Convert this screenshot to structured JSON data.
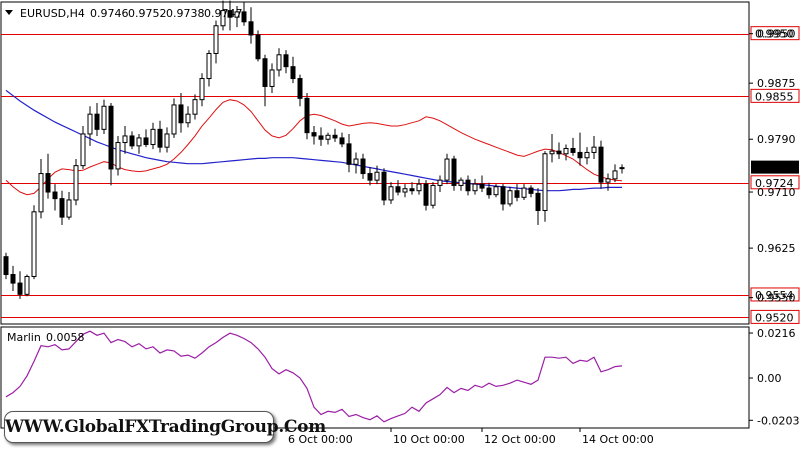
{
  "chart_data": [
    {
      "type": "candlestick",
      "title": "EURUSD,H4  0.9746 0.9752 0.9738 0.9747",
      "symbol_timeframe": "EURUSD,H4",
      "ohlc_header": [
        "0.9746",
        "0.9752",
        "0.9738",
        "0.9747"
      ],
      "ylim": [
        0.951,
        0.9998
      ],
      "y_ticks": [
        "0.9950",
        "0.9875",
        "0.9790",
        "0.9710",
        "0.9625",
        "0.9550"
      ],
      "x_ticks": [
        "6 Oct 00:00",
        "10 Oct 00:00",
        "12 Oct 00:00",
        "14 Oct 00:00"
      ],
      "current_price": "0.9747",
      "levels": [
        {
          "label": "0.9950",
          "value": 0.995,
          "color": "#e00000"
        },
        {
          "label": "0.9855",
          "value": 0.9855,
          "color": "#e00000"
        },
        {
          "label": "0.9724",
          "value": 0.9724,
          "color": "#e00000"
        },
        {
          "label": "0.9554",
          "value": 0.9554,
          "color": "#e00000"
        },
        {
          "label": "0.9520",
          "value": 0.952,
          "color": "#e00000"
        }
      ],
      "candles": [
        [
          0.9612,
          0.9618,
          0.9578,
          0.9585
        ],
        [
          0.9585,
          0.9598,
          0.956,
          0.9572
        ],
        [
          0.9572,
          0.959,
          0.9548,
          0.9555
        ],
        [
          0.9555,
          0.9585,
          0.9552,
          0.9582
        ],
        [
          0.9582,
          0.969,
          0.9578,
          0.968
        ],
        [
          0.968,
          0.976,
          0.967,
          0.9738
        ],
        [
          0.9738,
          0.9768,
          0.97,
          0.971
        ],
        [
          0.971,
          0.9722,
          0.9682,
          0.97
        ],
        [
          0.97,
          0.9712,
          0.966,
          0.9672
        ],
        [
          0.9672,
          0.971,
          0.9668,
          0.9698
        ],
        [
          0.9698,
          0.976,
          0.969,
          0.975
        ],
        [
          0.975,
          0.981,
          0.9745,
          0.9798
        ],
        [
          0.9798,
          0.984,
          0.978,
          0.9828
        ],
        [
          0.9828,
          0.9845,
          0.9795,
          0.9805
        ],
        [
          0.9805,
          0.985,
          0.9798,
          0.984
        ],
        [
          0.984,
          0.9845,
          0.972,
          0.9745
        ],
        [
          0.9745,
          0.9795,
          0.9735,
          0.9785
        ],
        [
          0.9785,
          0.981,
          0.9768,
          0.9795
        ],
        [
          0.9795,
          0.9802,
          0.9775,
          0.978
        ],
        [
          0.978,
          0.9798,
          0.9768,
          0.9792
        ],
        [
          0.9792,
          0.9805,
          0.9778,
          0.9782
        ],
        [
          0.9782,
          0.9815,
          0.9775,
          0.9805
        ],
        [
          0.9805,
          0.9818,
          0.977,
          0.9778
        ],
        [
          0.9778,
          0.9808,
          0.977,
          0.9798
        ],
        [
          0.9798,
          0.9852,
          0.9792,
          0.9842
        ],
        [
          0.9842,
          0.986,
          0.98,
          0.9815
        ],
        [
          0.9815,
          0.984,
          0.9808,
          0.9828
        ],
        [
          0.9828,
          0.9858,
          0.982,
          0.985
        ],
        [
          0.985,
          0.989,
          0.984,
          0.9882
        ],
        [
          0.9882,
          0.9925,
          0.987,
          0.992
        ],
        [
          0.992,
          0.997,
          0.9905,
          0.9962
        ],
        [
          0.9962,
          1.0,
          0.9955,
          0.9985
        ],
        [
          0.9985,
          1.0,
          0.9955,
          0.9975
        ],
        [
          0.9975,
          0.9992,
          0.996,
          0.9983
        ],
        [
          0.9983,
          0.9998,
          0.9962,
          0.9968
        ],
        [
          0.9968,
          0.999,
          0.9935,
          0.9948
        ],
        [
          0.9948,
          0.9955,
          0.9908,
          0.9912
        ],
        [
          0.9912,
          0.9918,
          0.984,
          0.987
        ],
        [
          0.987,
          0.9905,
          0.986,
          0.9895
        ],
        [
          0.9895,
          0.9928,
          0.9885,
          0.9918
        ],
        [
          0.9918,
          0.9925,
          0.989,
          0.99
        ],
        [
          0.99,
          0.9915,
          0.9875,
          0.9882
        ],
        [
          0.9882,
          0.9888,
          0.984,
          0.9852
        ],
        [
          0.9852,
          0.986,
          0.979,
          0.98
        ],
        [
          0.98,
          0.981,
          0.9782,
          0.9795
        ],
        [
          0.9795,
          0.9808,
          0.978,
          0.979
        ],
        [
          0.979,
          0.98,
          0.9782,
          0.9796
        ],
        [
          0.9796,
          0.9806,
          0.9786,
          0.9792
        ],
        [
          0.9792,
          0.98,
          0.9778,
          0.9783
        ],
        [
          0.9783,
          0.9798,
          0.974,
          0.9752
        ],
        [
          0.9752,
          0.977,
          0.9738,
          0.976
        ],
        [
          0.976,
          0.9768,
          0.973,
          0.9738
        ],
        [
          0.9738,
          0.9748,
          0.972,
          0.9728
        ],
        [
          0.9728,
          0.975,
          0.9722,
          0.974
        ],
        [
          0.974,
          0.9746,
          0.969,
          0.9698
        ],
        [
          0.9698,
          0.9725,
          0.9692,
          0.9718
        ],
        [
          0.9718,
          0.9728,
          0.9705,
          0.971
        ],
        [
          0.971,
          0.9722,
          0.9702,
          0.9715
        ],
        [
          0.9715,
          0.9725,
          0.9706,
          0.9712
        ],
        [
          0.9712,
          0.973,
          0.9706,
          0.9722
        ],
        [
          0.9722,
          0.9728,
          0.9682,
          0.969
        ],
        [
          0.969,
          0.9725,
          0.9685,
          0.972
        ],
        [
          0.972,
          0.9735,
          0.971,
          0.9728
        ],
        [
          0.9728,
          0.9768,
          0.9722,
          0.976
        ],
        [
          0.976,
          0.9765,
          0.9712,
          0.972
        ],
        [
          0.972,
          0.9732,
          0.9712,
          0.9728
        ],
        [
          0.9728,
          0.9735,
          0.9705,
          0.9712
        ],
        [
          0.9712,
          0.973,
          0.9706,
          0.9722
        ],
        [
          0.9722,
          0.9735,
          0.971,
          0.9716
        ],
        [
          0.9716,
          0.9724,
          0.97,
          0.9706
        ],
        [
          0.9706,
          0.9722,
          0.9702,
          0.9718
        ],
        [
          0.9718,
          0.9722,
          0.9682,
          0.9692
        ],
        [
          0.9692,
          0.9718,
          0.9688,
          0.9712
        ],
        [
          0.9712,
          0.9722,
          0.9696,
          0.9702
        ],
        [
          0.9702,
          0.9722,
          0.9698,
          0.9716
        ],
        [
          0.9716,
          0.972,
          0.9702,
          0.9708
        ],
        [
          0.9708,
          0.9716,
          0.966,
          0.9682
        ],
        [
          0.9682,
          0.9772,
          0.9665,
          0.9768
        ],
        [
          0.9768,
          0.9798,
          0.9755,
          0.9772
        ],
        [
          0.9772,
          0.9785,
          0.976,
          0.9768
        ],
        [
          0.9768,
          0.9782,
          0.9758,
          0.9776
        ],
        [
          0.9776,
          0.9792,
          0.9765,
          0.977
        ],
        [
          0.977,
          0.98,
          0.975,
          0.9762
        ],
        [
          0.9762,
          0.9778,
          0.9752,
          0.977
        ],
        [
          0.977,
          0.9795,
          0.976,
          0.9778
        ],
        [
          0.9778,
          0.9788,
          0.9715,
          0.9725
        ],
        [
          0.9725,
          0.9738,
          0.9712,
          0.973
        ],
        [
          0.973,
          0.9752,
          0.9725,
          0.9742
        ],
        [
          0.9746,
          0.9752,
          0.9738,
          0.9747
        ]
      ],
      "ma_blue": [
        0.9864,
        0.9856,
        0.9848,
        0.9841,
        0.9834,
        0.9828,
        0.9822,
        0.9816,
        0.9811,
        0.9806,
        0.9801,
        0.9796,
        0.9791,
        0.9786,
        0.9782,
        0.9778,
        0.9774,
        0.9771,
        0.9768,
        0.9765,
        0.9762,
        0.976,
        0.9758,
        0.9756,
        0.9755,
        0.9754,
        0.9753,
        0.9753,
        0.9753,
        0.9754,
        0.9755,
        0.9756,
        0.9757,
        0.9758,
        0.9759,
        0.976,
        0.9761,
        0.9761,
        0.9762,
        0.9762,
        0.9762,
        0.9762,
        0.9761,
        0.976,
        0.9759,
        0.9758,
        0.9757,
        0.9756,
        0.9755,
        0.9753,
        0.9751,
        0.9749,
        0.9747,
        0.9745,
        0.9743,
        0.9741,
        0.9739,
        0.9737,
        0.9735,
        0.9733,
        0.9731,
        0.9729,
        0.9727,
        0.9726,
        0.9725,
        0.9724,
        0.9723,
        0.9722,
        0.9721,
        0.972,
        0.9719,
        0.9718,
        0.9717,
        0.9716,
        0.9715,
        0.9714,
        0.9713,
        0.9712,
        0.9712,
        0.9712,
        0.9713,
        0.9714,
        0.9714,
        0.9715,
        0.9716,
        0.9716,
        0.9717,
        0.9717,
        0.9717
      ],
      "ma_red": [
        0.9728,
        0.9718,
        0.971,
        0.9706,
        0.9708,
        0.9718,
        0.973,
        0.974,
        0.9745,
        0.9744,
        0.9742,
        0.9743,
        0.9748,
        0.9752,
        0.9756,
        0.9754,
        0.9748,
        0.9744,
        0.9742,
        0.9741,
        0.9742,
        0.9745,
        0.9748,
        0.9752,
        0.976,
        0.977,
        0.9782,
        0.9795,
        0.981,
        0.9822,
        0.9835,
        0.9846,
        0.985,
        0.9848,
        0.9842,
        0.9832,
        0.9818,
        0.9804,
        0.9795,
        0.9792,
        0.9796,
        0.9806,
        0.9818,
        0.9826,
        0.9828,
        0.9826,
        0.9822,
        0.9818,
        0.9813,
        0.981,
        0.9812,
        0.9814,
        0.9815,
        0.9814,
        0.9812,
        0.981,
        0.981,
        0.9812,
        0.9815,
        0.9818,
        0.9824,
        0.9822,
        0.9818,
        0.9812,
        0.9806,
        0.98,
        0.9795,
        0.979,
        0.9786,
        0.9782,
        0.9778,
        0.9774,
        0.977,
        0.9766,
        0.9764,
        0.9768,
        0.9772,
        0.9775,
        0.9774,
        0.977,
        0.9765,
        0.976,
        0.9752,
        0.9744,
        0.9737,
        0.9733,
        0.973,
        0.9728,
        0.9727
      ]
    },
    {
      "type": "line",
      "title": "Marlin 0.0058",
      "indicator_name": "Marlin",
      "indicator_value": "0.0058",
      "ylim": [
        -0.024,
        0.0245
      ],
      "y_ticks": [
        "0.0216",
        "0.00",
        "-0.0203"
      ],
      "series": [
        {
          "name": "Marlin",
          "color": "#9b1fa6",
          "values": [
            -0.009,
            -0.007,
            -0.004,
            0.001,
            0.008,
            0.0155,
            0.015,
            0.016,
            0.0135,
            0.014,
            0.0175,
            0.021,
            0.0225,
            0.0205,
            0.0215,
            0.017,
            0.0185,
            0.0175,
            0.015,
            0.0165,
            0.014,
            0.015,
            0.012,
            0.0135,
            0.013,
            0.0105,
            0.011,
            0.0095,
            0.012,
            0.015,
            0.017,
            0.0195,
            0.0215,
            0.0205,
            0.019,
            0.017,
            0.014,
            0.01,
            0.0045,
            0.002,
            0.004,
            0.0025,
            0.0,
            -0.005,
            -0.014,
            -0.0175,
            -0.016,
            -0.0165,
            -0.015,
            -0.0185,
            -0.0175,
            -0.019,
            -0.02,
            -0.0182,
            -0.021,
            -0.0195,
            -0.0182,
            -0.017,
            -0.014,
            -0.016,
            -0.012,
            -0.01,
            -0.008,
            -0.0045,
            -0.007,
            -0.005,
            -0.006,
            -0.0035,
            -0.0045,
            -0.0025,
            -0.004,
            -0.0035,
            -0.0025,
            -0.001,
            -0.002,
            -0.003,
            -0.001,
            0.01,
            0.01,
            0.0095,
            0.01,
            0.007,
            0.0085,
            0.008,
            0.01,
            0.003,
            0.004,
            0.0055,
            0.0058
          ]
        }
      ]
    }
  ],
  "watermark": "WWW.GlobalFXTradingGroup.Com",
  "colors": {
    "candle": "#000000",
    "up_fill": "#ffffff",
    "down_fill": "#000000",
    "ma_blue": "#2222cc",
    "ma_red": "#dd1111",
    "level": "#e00000",
    "tag_bg": "#ffffff",
    "tag_text": "#e00000",
    "grid": "#000000"
  }
}
